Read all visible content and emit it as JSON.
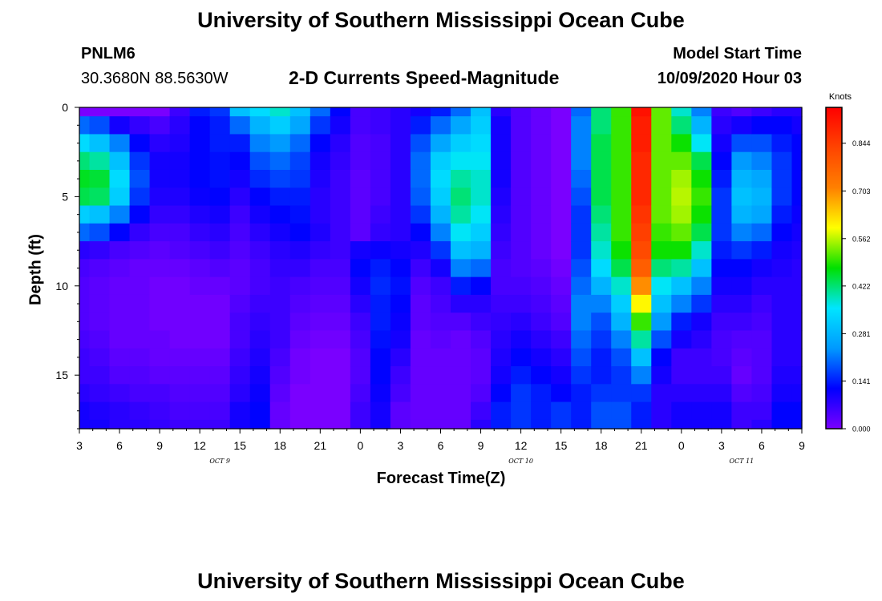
{
  "page": {
    "title_top": "University of Southern Mississippi Ocean Cube",
    "title_bottom": "University of Southern Mississippi Ocean Cube",
    "station_id": "PNLM6",
    "station_coords": "30.3680N 88.5630W",
    "model_label": "Model Start Time",
    "model_time": "10/09/2020 Hour 03"
  },
  "chart_data": {
    "type": "heatmap",
    "title": "2-D Currents Speed-Magnitude",
    "xlabel": "Forecast Time(Z)",
    "ylabel": "Depth (ft)",
    "x_tick_labels": [
      "3",
      "6",
      "9",
      "12",
      "15",
      "18",
      "21",
      "0",
      "3",
      "6",
      "9",
      "12",
      "15",
      "18",
      "21",
      "0",
      "3",
      "6",
      "9"
    ],
    "x_hours": [
      0,
      54
    ],
    "y_ticks": [
      0,
      5,
      10,
      15
    ],
    "ylim": [
      0,
      18
    ],
    "date_labels": [
      {
        "label": "OCT 9",
        "hour": 10.5
      },
      {
        "label": "OCT 10",
        "hour": 33
      },
      {
        "label": "OCT 11",
        "hour": 49.5
      }
    ],
    "colorbar": {
      "unit": "Knots",
      "ticks": [
        "0.000",
        "0.141",
        "0.281",
        "0.422",
        "0.562",
        "0.703",
        "0.844"
      ],
      "tick_values": [
        0.0,
        0.141,
        0.281,
        0.422,
        0.562,
        0.703,
        0.844
      ],
      "range": [
        0,
        0.95
      ],
      "colors": [
        "#7a00ff",
        "#0000ff",
        "#0099ff",
        "#00e5ff",
        "#00e000",
        "#ffff00",
        "#ff8000",
        "#ff4400",
        "#ff0000"
      ]
    },
    "grid": {
      "time_hours": [
        0,
        1.5,
        3,
        4.5,
        6,
        7.5,
        9,
        10.5,
        12,
        13.5,
        15,
        16.5,
        18,
        19.5,
        21,
        22.5,
        24,
        25.5,
        27,
        28.5,
        30,
        31.5,
        33,
        34.5,
        36,
        37.5,
        39,
        40.5,
        42,
        43.5,
        45,
        46.5,
        48,
        49.5,
        51,
        52.5,
        54
      ],
      "depth_ft": [
        0,
        1,
        2,
        3,
        4,
        5,
        6,
        7,
        8,
        9,
        10,
        11,
        12,
        13,
        14,
        15,
        16,
        17,
        18
      ],
      "speed_knots": [
        [
          0.0,
          0.2,
          0.34,
          0.42,
          0.46,
          0.44,
          0.32,
          0.2,
          0.08,
          0.05,
          0.04,
          0.04,
          0.04,
          0.05,
          0.06,
          0.06,
          0.08,
          0.1,
          0.1
        ],
        [
          0.0,
          0.18,
          0.3,
          0.4,
          0.45,
          0.43,
          0.3,
          0.18,
          0.07,
          0.04,
          0.03,
          0.03,
          0.03,
          0.04,
          0.05,
          0.06,
          0.07,
          0.09,
          0.1
        ],
        [
          0.0,
          0.1,
          0.22,
          0.3,
          0.34,
          0.32,
          0.22,
          0.12,
          0.05,
          0.03,
          0.02,
          0.02,
          0.02,
          0.02,
          0.03,
          0.04,
          0.06,
          0.08,
          0.08
        ],
        [
          0.0,
          0.07,
          0.12,
          0.16,
          0.18,
          0.16,
          0.12,
          0.07,
          0.04,
          0.02,
          0.02,
          0.02,
          0.02,
          0.02,
          0.03,
          0.04,
          0.05,
          0.07,
          0.08
        ],
        [
          0.0,
          0.05,
          0.08,
          0.1,
          0.1,
          0.09,
          0.07,
          0.05,
          0.03,
          0.02,
          0.01,
          0.01,
          0.01,
          0.02,
          0.02,
          0.03,
          0.05,
          0.06,
          0.07
        ],
        [
          0.06,
          0.08,
          0.09,
          0.1,
          0.1,
          0.09,
          0.07,
          0.05,
          0.04,
          0.02,
          0.01,
          0.01,
          0.01,
          0.01,
          0.02,
          0.03,
          0.04,
          0.05,
          0.06
        ],
        [
          0.14,
          0.12,
          0.12,
          0.12,
          0.12,
          0.11,
          0.09,
          0.07,
          0.05,
          0.03,
          0.02,
          0.01,
          0.01,
          0.01,
          0.02,
          0.03,
          0.04,
          0.05,
          0.06
        ],
        [
          0.16,
          0.14,
          0.14,
          0.13,
          0.13,
          0.12,
          0.1,
          0.08,
          0.06,
          0.04,
          0.02,
          0.01,
          0.01,
          0.01,
          0.02,
          0.03,
          0.04,
          0.05,
          0.06
        ],
        [
          0.3,
          0.2,
          0.14,
          0.12,
          0.1,
          0.08,
          0.06,
          0.05,
          0.04,
          0.03,
          0.03,
          0.04,
          0.05,
          0.05,
          0.06,
          0.07,
          0.08,
          0.1,
          0.1
        ],
        [
          0.34,
          0.28,
          0.22,
          0.18,
          0.15,
          0.12,
          0.1,
          0.08,
          0.06,
          0.05,
          0.05,
          0.06,
          0.07,
          0.08,
          0.09,
          0.1,
          0.11,
          0.12,
          0.12
        ],
        [
          0.38,
          0.32,
          0.24,
          0.2,
          0.17,
          0.14,
          0.12,
          0.1,
          0.08,
          0.07,
          0.06,
          0.06,
          0.06,
          0.06,
          0.05,
          0.04,
          0.03,
          0.02,
          0.02
        ],
        [
          0.3,
          0.26,
          0.2,
          0.17,
          0.16,
          0.14,
          0.13,
          0.12,
          0.09,
          0.07,
          0.05,
          0.04,
          0.03,
          0.02,
          0.01,
          0.01,
          0.0,
          0.0,
          0.0
        ],
        [
          0.2,
          0.16,
          0.12,
          0.1,
          0.09,
          0.08,
          0.08,
          0.09,
          0.07,
          0.05,
          0.04,
          0.03,
          0.02,
          0.01,
          0.0,
          0.0,
          0.0,
          0.0,
          0.0
        ],
        [
          0.12,
          0.1,
          0.08,
          0.07,
          0.06,
          0.06,
          0.06,
          0.06,
          0.06,
          0.05,
          0.04,
          0.03,
          0.02,
          0.01,
          0.0,
          0.0,
          0.0,
          0.0,
          0.0
        ],
        [
          0.05,
          0.05,
          0.04,
          0.04,
          0.03,
          0.03,
          0.03,
          0.03,
          0.1,
          0.12,
          0.1,
          0.08,
          0.06,
          0.05,
          0.04,
          0.04,
          0.05,
          0.06,
          0.06
        ],
        [
          0.06,
          0.06,
          0.05,
          0.05,
          0.05,
          0.05,
          0.06,
          0.07,
          0.11,
          0.14,
          0.15,
          0.14,
          0.14,
          0.13,
          0.12,
          0.12,
          0.11,
          0.1,
          0.1
        ],
        [
          0.08,
          0.08,
          0.08,
          0.08,
          0.08,
          0.08,
          0.08,
          0.08,
          0.1,
          0.12,
          0.13,
          0.12,
          0.11,
          0.1,
          0.08,
          0.06,
          0.05,
          0.03,
          0.03
        ],
        [
          0.1,
          0.14,
          0.18,
          0.2,
          0.2,
          0.19,
          0.16,
          0.12,
          0.09,
          0.06,
          0.04,
          0.03,
          0.03,
          0.02,
          0.02,
          0.02,
          0.02,
          0.02,
          0.02
        ],
        [
          0.14,
          0.2,
          0.26,
          0.32,
          0.34,
          0.32,
          0.28,
          0.22,
          0.16,
          0.1,
          0.06,
          0.05,
          0.04,
          0.03,
          0.02,
          0.02,
          0.02,
          0.02,
          0.02
        ],
        [
          0.2,
          0.26,
          0.32,
          0.36,
          0.4,
          0.42,
          0.4,
          0.36,
          0.3,
          0.22,
          0.14,
          0.08,
          0.04,
          0.02,
          0.02,
          0.02,
          0.02,
          0.02,
          0.02
        ],
        [
          0.3,
          0.32,
          0.34,
          0.36,
          0.38,
          0.38,
          0.36,
          0.32,
          0.28,
          0.2,
          0.12,
          0.08,
          0.06,
          0.04,
          0.03,
          0.03,
          0.04,
          0.06,
          0.08
        ],
        [
          0.08,
          0.1,
          0.1,
          0.1,
          0.1,
          0.09,
          0.08,
          0.07,
          0.06,
          0.05,
          0.05,
          0.06,
          0.07,
          0.08,
          0.09,
          0.1,
          0.12,
          0.14,
          0.14
        ],
        [
          0.04,
          0.04,
          0.04,
          0.04,
          0.04,
          0.04,
          0.04,
          0.04,
          0.04,
          0.04,
          0.05,
          0.06,
          0.08,
          0.1,
          0.12,
          0.14,
          0.16,
          0.16,
          0.16
        ],
        [
          0.02,
          0.02,
          0.02,
          0.02,
          0.02,
          0.02,
          0.02,
          0.02,
          0.02,
          0.03,
          0.04,
          0.05,
          0.06,
          0.08,
          0.1,
          0.12,
          0.14,
          0.14,
          0.14
        ],
        [
          0.0,
          0.0,
          0.0,
          0.0,
          0.0,
          0.0,
          0.0,
          0.0,
          0.0,
          0.01,
          0.02,
          0.03,
          0.04,
          0.06,
          0.08,
          0.1,
          0.12,
          0.16,
          0.16
        ],
        [
          0.2,
          0.22,
          0.22,
          0.22,
          0.2,
          0.18,
          0.16,
          0.16,
          0.16,
          0.18,
          0.2,
          0.22,
          0.22,
          0.2,
          0.18,
          0.16,
          0.14,
          0.14,
          0.14
        ],
        [
          0.42,
          0.42,
          0.44,
          0.44,
          0.44,
          0.44,
          0.42,
          0.4,
          0.38,
          0.34,
          0.28,
          0.22,
          0.18,
          0.16,
          0.14,
          0.14,
          0.16,
          0.18,
          0.18
        ],
        [
          0.5,
          0.5,
          0.5,
          0.5,
          0.5,
          0.5,
          0.5,
          0.5,
          0.48,
          0.44,
          0.38,
          0.32,
          0.28,
          0.22,
          0.18,
          0.16,
          0.16,
          0.18,
          0.18
        ],
        [
          0.92,
          0.9,
          0.9,
          0.88,
          0.88,
          0.88,
          0.86,
          0.84,
          0.82,
          0.78,
          0.7,
          0.6,
          0.5,
          0.4,
          0.3,
          0.22,
          0.16,
          0.14,
          0.14
        ],
        [
          0.52,
          0.52,
          0.52,
          0.52,
          0.52,
          0.52,
          0.52,
          0.5,
          0.48,
          0.42,
          0.36,
          0.3,
          0.24,
          0.18,
          0.12,
          0.1,
          0.08,
          0.08,
          0.08
        ],
        [
          0.38,
          0.42,
          0.48,
          0.52,
          0.55,
          0.56,
          0.55,
          0.52,
          0.48,
          0.4,
          0.3,
          0.22,
          0.14,
          0.1,
          0.06,
          0.06,
          0.08,
          0.1,
          0.1
        ],
        [
          0.22,
          0.28,
          0.36,
          0.44,
          0.48,
          0.5,
          0.48,
          0.44,
          0.38,
          0.3,
          0.22,
          0.16,
          0.1,
          0.08,
          0.06,
          0.06,
          0.08,
          0.1,
          0.1
        ],
        [
          0.06,
          0.08,
          0.1,
          0.12,
          0.14,
          0.16,
          0.16,
          0.16,
          0.14,
          0.12,
          0.1,
          0.08,
          0.06,
          0.05,
          0.05,
          0.06,
          0.08,
          0.1,
          0.1
        ],
        [
          0.04,
          0.1,
          0.18,
          0.24,
          0.28,
          0.3,
          0.28,
          0.22,
          0.16,
          0.12,
          0.1,
          0.08,
          0.06,
          0.04,
          0.03,
          0.02,
          0.04,
          0.06,
          0.06
        ],
        [
          0.06,
          0.12,
          0.18,
          0.22,
          0.26,
          0.28,
          0.26,
          0.2,
          0.14,
          0.1,
          0.08,
          0.06,
          0.05,
          0.04,
          0.04,
          0.04,
          0.05,
          0.06,
          0.08
        ],
        [
          0.08,
          0.12,
          0.14,
          0.16,
          0.16,
          0.16,
          0.14,
          0.12,
          0.1,
          0.09,
          0.08,
          0.08,
          0.08,
          0.08,
          0.08,
          0.09,
          0.1,
          0.12,
          0.12
        ],
        [
          0.08,
          0.1,
          0.12,
          0.12,
          0.12,
          0.12,
          0.11,
          0.1,
          0.09,
          0.08,
          0.08,
          0.08,
          0.08,
          0.08,
          0.08,
          0.09,
          0.1,
          0.12,
          0.12
        ]
      ]
    }
  }
}
